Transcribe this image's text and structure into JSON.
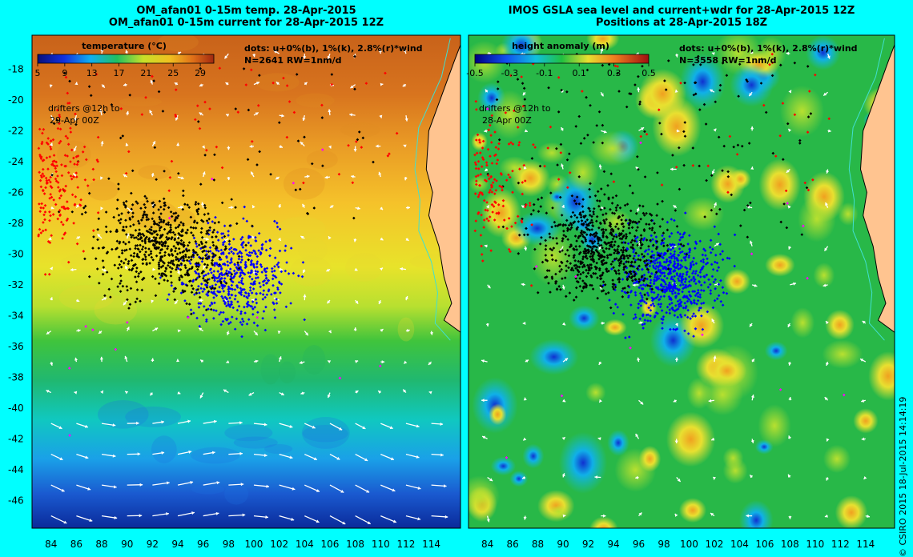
{
  "panels": [
    {
      "id": "left",
      "title_line1": "OM_afan01 0-15m temp. 28-Apr-2015",
      "title_line2": "OM_afan01 0-15m current for 28-Apr-2015 12Z",
      "colorbar_title": "temperature (°C)",
      "colorbar_ticks": [
        "5",
        "9",
        "13",
        "17",
        "21",
        "25",
        "29"
      ],
      "colorbar_range": [
        5,
        31
      ],
      "dots_legend_line1": "dots: u+0%(b), 1%(k), 2.8%(r)*wind",
      "dots_legend_line2": "N=2641  RW=1nm/d",
      "drifters_note_line1": "drifters @12h to",
      "drifters_note_line2": "29-Apr 00Z"
    },
    {
      "id": "right",
      "title_line1": "IMOS GSLA sea level and current+wdr for 28-Apr-2015 12Z",
      "title_line2": "Positions at 28-Apr-2015 18Z",
      "colorbar_title": "height anomaly  (m)",
      "colorbar_ticks": [
        "-0.5",
        "-0.3",
        "-0.1",
        "0.1",
        "0.3",
        "0.5"
      ],
      "colorbar_range": [
        -0.5,
        0.5
      ],
      "dots_legend_line1": "dots: u+0%(b), 1%(k), 2.8%(r)*wind",
      "dots_legend_line2": "N=3558  RW=1nm/d",
      "drifters_note_line1": "drifters @12h to",
      "drifters_note_line2": "28-Apr 00Z"
    }
  ],
  "map": {
    "lon_range": [
      82.5,
      116.3
    ],
    "lat_range": [
      -47.8,
      -15.8
    ],
    "lon_ticks": [
      84,
      86,
      88,
      90,
      92,
      94,
      96,
      98,
      100,
      102,
      104,
      106,
      108,
      110,
      112,
      114
    ],
    "lat_ticks": [
      -18,
      -20,
      -22,
      -24,
      -26,
      -28,
      -30,
      -32,
      -34,
      -36,
      -38,
      -40,
      -42,
      -44,
      -46
    ],
    "colors": {
      "background": "#00ffff",
      "land": "#ffc490",
      "coast": "#000000",
      "bathy_contour": "#40e0d0",
      "dot_blue": "#0000ff",
      "dot_black": "#000000",
      "dot_red": "#ff0000",
      "dot_magenta": "#ff00ff",
      "arrow": "#ffffff"
    }
  },
  "credit": "© CSIRO 2015   18-Jul-2015 14:14:19"
}
